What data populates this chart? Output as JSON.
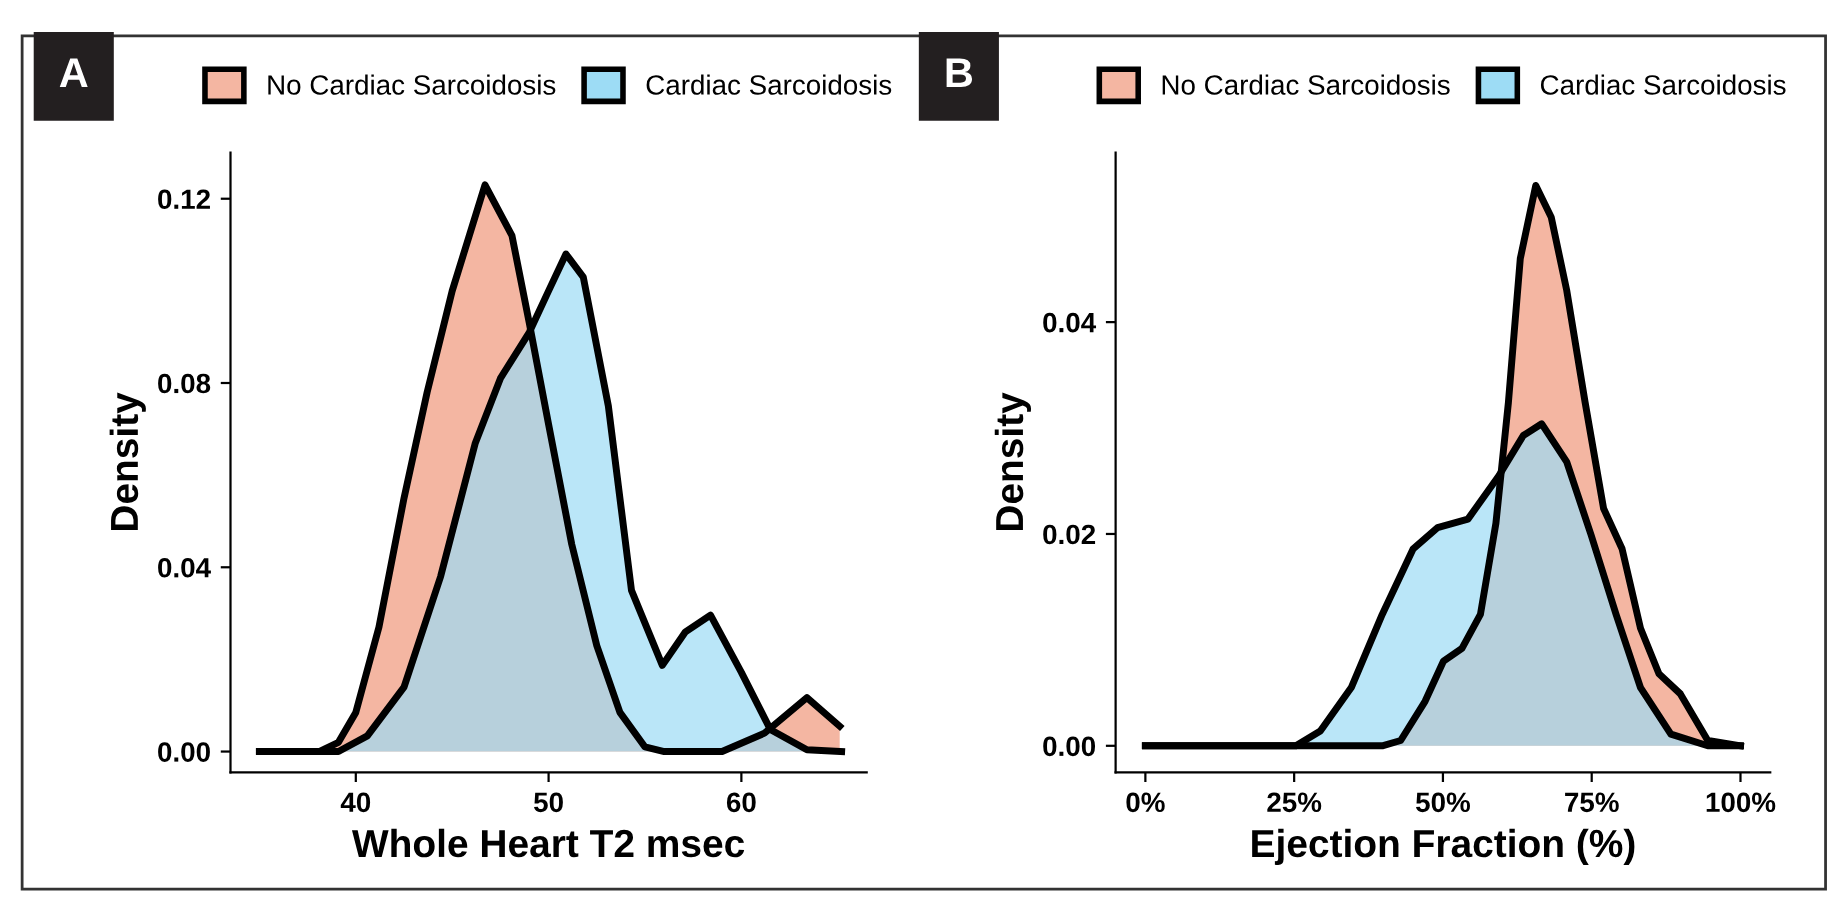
{
  "chart_data": [
    {
      "type": "area",
      "title": "A",
      "xlabel": "Whole Heart T2 msec",
      "ylabel": "Density",
      "legend": "top",
      "xlim": [
        33.5,
        66.5
      ],
      "xticks": [
        40,
        50,
        60
      ],
      "ylim": [
        -0.0045,
        0.13
      ],
      "yticks": [
        {
          "value": 0,
          "label": "0.00"
        },
        {
          "value": 0.04,
          "label": "0.04"
        },
        {
          "value": 0.08,
          "label": "0.08"
        },
        {
          "value": 0.12,
          "label": "0.12"
        }
      ],
      "series": [
        {
          "name": "No Cardiac Sarcoidosis",
          "color": "#f4b6a2",
          "x": [
            35,
            38.1,
            39.1,
            40,
            41.2,
            42.5,
            43.7,
            45,
            46.7,
            48.1,
            49,
            50,
            51.2,
            52.5,
            53.7,
            55,
            56,
            57.5,
            59,
            61.2,
            63.4,
            65.1
          ],
          "values": [
            0,
            0,
            0.002,
            0.0085,
            0.027,
            0.055,
            0.078,
            0.1,
            0.123,
            0.112,
            0.093,
            0.071,
            0.045,
            0.023,
            0.0085,
            0.001,
            0,
            0,
            0,
            0.004,
            0.0117,
            0.0055
          ]
        },
        {
          "name": "Cardiac Sarcoidosis",
          "color": "#9ddcf5",
          "x": [
            35,
            39.1,
            40.6,
            42.5,
            44.4,
            46.2,
            47.5,
            49,
            50,
            50.9,
            51.8,
            53.1,
            54.3,
            55.9,
            57.1,
            58.4,
            60,
            61.5,
            63.4,
            65.2
          ],
          "values": [
            0,
            0,
            0.0034,
            0.014,
            0.038,
            0.067,
            0.081,
            0.091,
            0.1,
            0.108,
            0.103,
            0.075,
            0.035,
            0.0187,
            0.026,
            0.0296,
            0.0172,
            0.0048,
            0.0004,
            0
          ]
        }
      ]
    },
    {
      "type": "area",
      "title": "B",
      "xlabel": "Ejection Fraction (%)",
      "ylabel": "Density",
      "legend": "top",
      "xlim": [
        -5,
        105
      ],
      "xticks": [
        {
          "value": 0,
          "label": "0%"
        },
        {
          "value": 25,
          "label": "25%"
        },
        {
          "value": 50,
          "label": "50%"
        },
        {
          "value": 75,
          "label": "75%"
        },
        {
          "value": 100,
          "label": "100%"
        }
      ],
      "ylim": [
        -0.0025,
        0.056
      ],
      "yticks": [
        {
          "value": 0,
          "label": "0.00"
        },
        {
          "value": 0.02,
          "label": "0.02"
        },
        {
          "value": 0.04,
          "label": "0.04"
        }
      ],
      "series": [
        {
          "name": "No Cardiac Sarcoidosis",
          "color": "#f4b6a2",
          "x": [
            0,
            39.8,
            42.9,
            47,
            50.1,
            53.2,
            56.3,
            58.9,
            61,
            63,
            65.6,
            68.2,
            70.8,
            73.9,
            77,
            80.1,
            83.2,
            86.3,
            89.9,
            94.5,
            100
          ],
          "values": [
            0,
            0,
            0.0005,
            0.0042,
            0.008,
            0.0092,
            0.0124,
            0.021,
            0.0324,
            0.046,
            0.0529,
            0.0499,
            0.043,
            0.0324,
            0.0224,
            0.0186,
            0.0111,
            0.0068,
            0.0049,
            0.0005,
            0
          ]
        },
        {
          "name": "Cardiac Sarcoidosis",
          "color": "#9ddcf5",
          "x": [
            0,
            25.3,
            29.4,
            34.6,
            39.8,
            45,
            49.1,
            54.2,
            59.4,
            63.5,
            66.6,
            70.8,
            74.9,
            79.1,
            83.2,
            88.3,
            94.5,
            100
          ],
          "values": [
            0,
            0,
            0.0014,
            0.0055,
            0.0124,
            0.0186,
            0.0206,
            0.0214,
            0.0255,
            0.0293,
            0.0304,
            0.0268,
            0.0199,
            0.0124,
            0.0055,
            0.0011,
            0,
            0
          ]
        }
      ]
    }
  ]
}
